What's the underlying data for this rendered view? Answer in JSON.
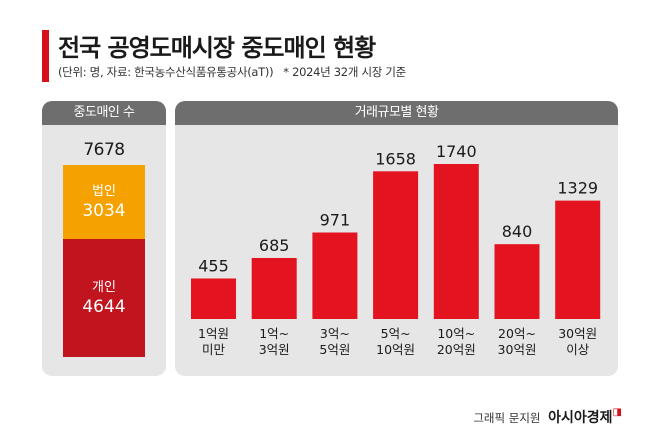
{
  "title": "전국 공영도매시장 중도매인 현황",
  "subtitle": "(단위: 명, 자료: 한국농수산식품유통공사(aT))",
  "note": "* 2024년 32개 시장 기준",
  "left_panel": {
    "header": "중도매인 수",
    "total": "7678",
    "corporate_label": "법인",
    "corporate_value": "3034",
    "individual_label": "개인",
    "individual_value": "4644"
  },
  "right_panel": {
    "header": "거래규모별 현황"
  },
  "chart_data": {
    "type": "bar",
    "title": "거래규모별 현황",
    "categories": [
      [
        "1억원",
        "미만"
      ],
      [
        "1억~",
        "3억원"
      ],
      [
        "3억~",
        "5억원"
      ],
      [
        "5억~",
        "10억원"
      ],
      [
        "10억~",
        "20억원"
      ],
      [
        "20억~",
        "30억원"
      ],
      [
        "30억원",
        "이상"
      ]
    ],
    "values": [
      455,
      685,
      971,
      1658,
      1740,
      840,
      1329
    ],
    "ylim": [
      0,
      1740
    ],
    "unit": "명",
    "bar_color": "#e3141f"
  },
  "credit": {
    "text": "그래픽 문지원",
    "brand": "아시아경제"
  },
  "colors": {
    "accent": "#d7101e",
    "corporate": "#f5a100",
    "individual": "#c0151f",
    "panel_bg": "#e6e6e6",
    "header_bg": "#6e6e6e"
  }
}
